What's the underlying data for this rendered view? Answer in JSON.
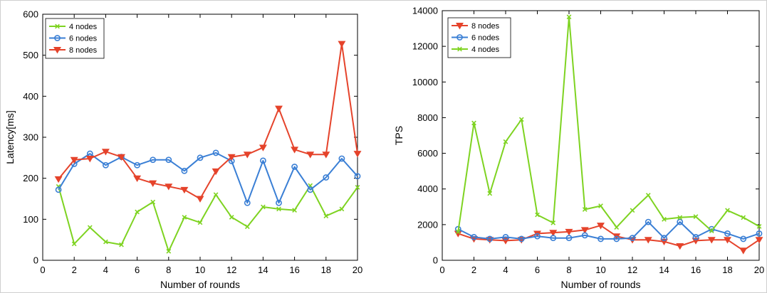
{
  "chart_data": [
    {
      "id": "latency",
      "type": "line",
      "title": "",
      "xlabel": "Number of rounds",
      "ylabel": "Latency[ms]",
      "xlim": [
        0,
        20
      ],
      "ylim": [
        0,
        600
      ],
      "xticks": [
        0,
        2,
        4,
        6,
        8,
        10,
        12,
        14,
        16,
        18,
        20
      ],
      "yticks": [
        0,
        100,
        200,
        300,
        400,
        500,
        600
      ],
      "grid": false,
      "legend_position": "top-left",
      "x": [
        1,
        2,
        3,
        4,
        5,
        6,
        7,
        8,
        9,
        10,
        11,
        12,
        13,
        14,
        15,
        16,
        17,
        18,
        19,
        20
      ],
      "series": [
        {
          "name": "4 nodes",
          "color": "#7ed321",
          "marker": "x",
          "values": [
            180,
            40,
            80,
            45,
            38,
            118,
            142,
            22,
            105,
            92,
            160,
            105,
            82,
            130,
            125,
            122,
            182,
            108,
            125,
            178
          ]
        },
        {
          "name": "6 nodes",
          "color": "#3a7fd5",
          "marker": "circle",
          "values": [
            172,
            235,
            260,
            232,
            252,
            232,
            245,
            245,
            218,
            250,
            262,
            242,
            140,
            243,
            140,
            228,
            172,
            202,
            248,
            205
          ]
        },
        {
          "name": "8 nodes",
          "color": "#e5432b",
          "marker": "triangle-down",
          "values": [
            198,
            245,
            248,
            265,
            252,
            200,
            188,
            180,
            172,
            150,
            217,
            252,
            258,
            275,
            370,
            270,
            258,
            258,
            528,
            260
          ]
        }
      ]
    },
    {
      "id": "tps",
      "type": "line",
      "title": "",
      "xlabel": "Number of rounds",
      "ylabel": "TPS",
      "xlim": [
        0,
        20
      ],
      "ylim": [
        0,
        14000
      ],
      "xticks": [
        0,
        2,
        4,
        6,
        8,
        10,
        12,
        14,
        16,
        18,
        20
      ],
      "yticks": [
        0,
        2000,
        4000,
        6000,
        8000,
        10000,
        12000,
        14000
      ],
      "grid": false,
      "legend_position": "top-left",
      "x": [
        1,
        2,
        3,
        4,
        5,
        6,
        7,
        8,
        9,
        10,
        11,
        12,
        13,
        14,
        15,
        16,
        17,
        18,
        19,
        20
      ],
      "series": [
        {
          "name": "8 nodes",
          "color": "#e5432b",
          "marker": "triangle-down",
          "values": [
            1500,
            1200,
            1150,
            1100,
            1150,
            1500,
            1550,
            1600,
            1700,
            1950,
            1350,
            1150,
            1150,
            1050,
            800,
            1100,
            1150,
            1150,
            550,
            1150
          ]
        },
        {
          "name": "6 nodes",
          "color": "#3a7fd5",
          "marker": "circle",
          "values": [
            1750,
            1300,
            1200,
            1300,
            1200,
            1350,
            1250,
            1250,
            1400,
            1200,
            1200,
            1250,
            2150,
            1250,
            2150,
            1300,
            1750,
            1500,
            1200,
            1500
          ]
        },
        {
          "name": "4 nodes",
          "color": "#7ed321",
          "marker": "x",
          "values": [
            1600,
            7700,
            3750,
            6650,
            7900,
            2550,
            2100,
            13650,
            2850,
            3050,
            1850,
            2800,
            3650,
            2300,
            2400,
            2450,
            1650,
            2800,
            2400,
            1900
          ]
        }
      ]
    }
  ]
}
